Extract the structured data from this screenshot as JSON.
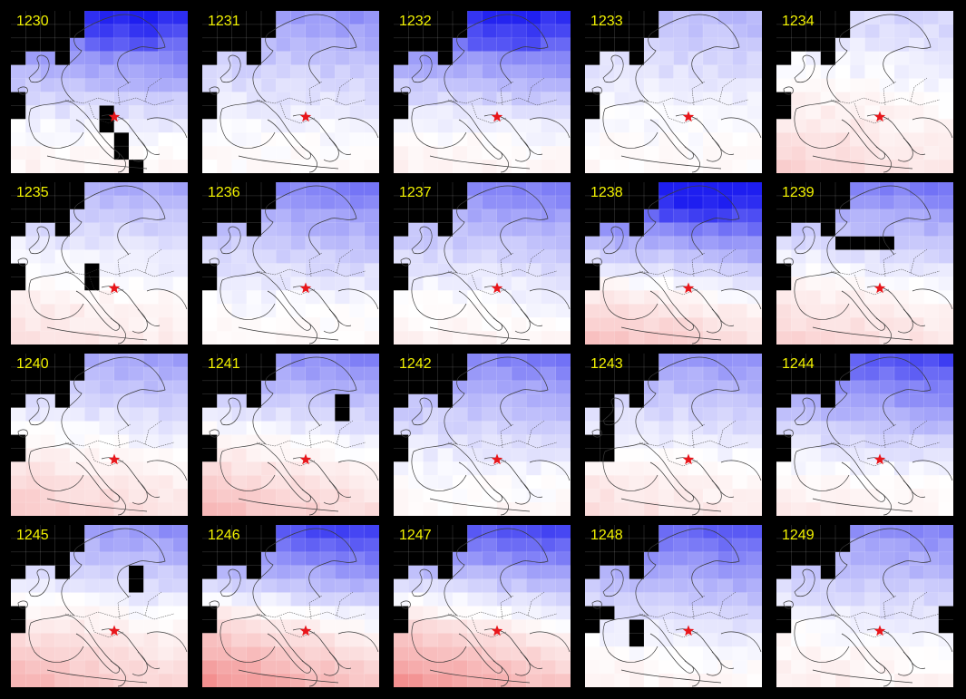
{
  "colors": {
    "background": "#000000",
    "label": "#f2f200",
    "coast": "#3a3a3a",
    "marker": "#e8161b",
    "warm": "#ef6e6e",
    "cold": "#1e1ef0"
  },
  "marker_icon": "red-star",
  "panels": [
    {
      "year": "1230",
      "north": 0.85,
      "south": 0.06,
      "cold_core": true
    },
    {
      "year": "1231",
      "north": 0.45,
      "south": 0.02
    },
    {
      "year": "1232",
      "north": 0.85,
      "south": 0.08,
      "cold_core": true
    },
    {
      "year": "1233",
      "north": 0.3,
      "south": 0.03
    },
    {
      "year": "1234",
      "north": 0.18,
      "south": 0.25
    },
    {
      "year": "1235",
      "north": 0.35,
      "south": 0.18
    },
    {
      "year": "1236",
      "north": 0.55,
      "south": 0.03
    },
    {
      "year": "1237",
      "north": 0.55,
      "south": 0.06
    },
    {
      "year": "1238",
      "north": 1.0,
      "south": 0.35,
      "cold_core": true
    },
    {
      "year": "1239",
      "north": 0.55,
      "south": 0.25
    },
    {
      "year": "1240",
      "north": 0.4,
      "south": 0.3
    },
    {
      "year": "1241",
      "north": 0.5,
      "south": 0.38
    },
    {
      "year": "1242",
      "north": 0.55,
      "south": 0.04
    },
    {
      "year": "1243",
      "north": 0.45,
      "south": 0.18
    },
    {
      "year": "1244",
      "north": 0.75,
      "south": 0.1
    },
    {
      "year": "1245",
      "north": 0.45,
      "south": 0.42
    },
    {
      "year": "1246",
      "north": 0.8,
      "south": 0.62
    },
    {
      "year": "1247",
      "north": 0.75,
      "south": 0.62
    },
    {
      "year": "1248",
      "north": 0.7,
      "south": 0.06
    },
    {
      "year": "1249",
      "north": 0.5,
      "south": 0.1
    }
  ]
}
